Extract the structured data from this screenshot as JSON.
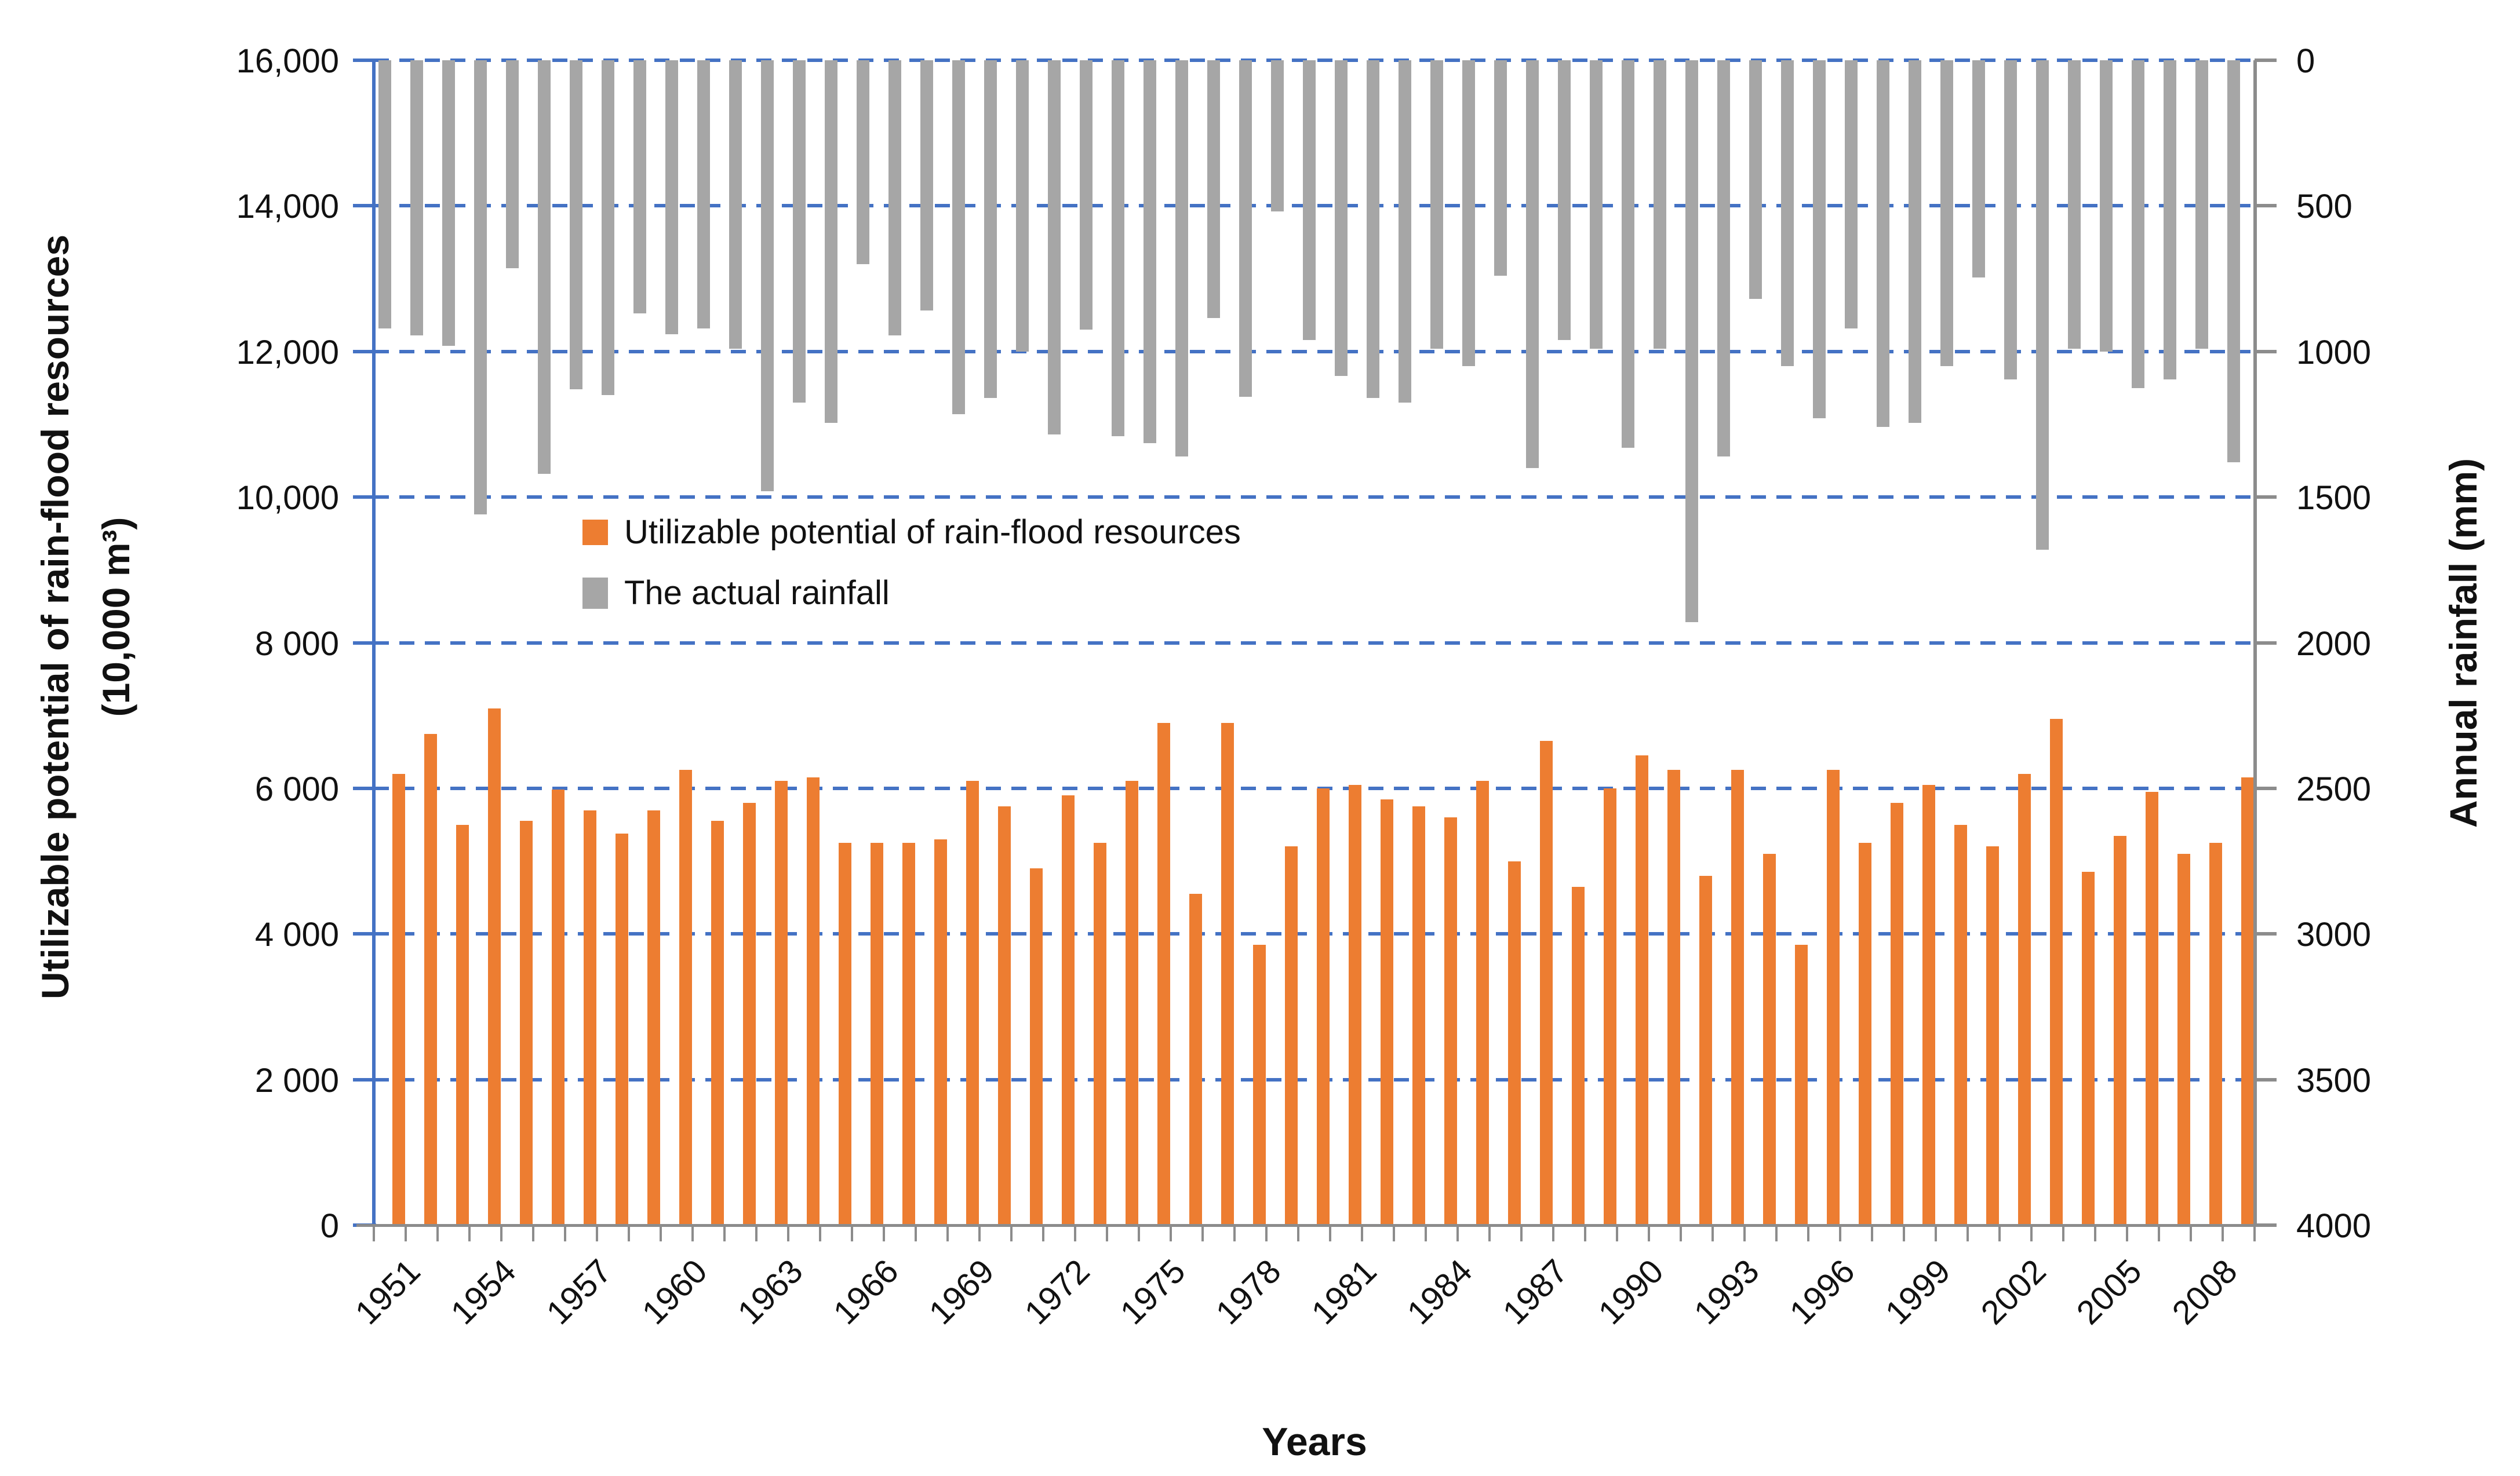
{
  "chart": {
    "left_axis": {
      "title_line1": "Utilizable potential of rain-flood resources",
      "title_line2": "(10,000 m³)",
      "tick_labels": [
        "16,000",
        "14,000",
        "12,000",
        "10,000",
        "8 000",
        "6 000",
        "4 000",
        "2 000",
        "0"
      ]
    },
    "right_axis": {
      "title": "Annual rainfall  (mm)",
      "tick_labels": [
        "0",
        "500",
        "1000",
        "1500",
        "2000",
        "2500",
        "3000",
        "3500",
        "4000"
      ]
    },
    "x_title": "Years",
    "legend": [
      {
        "label": "Utilizable potential of rain-flood resources",
        "color": "#ED7D31"
      },
      {
        "label": "The actual rainfall",
        "color": "#A6A6A6"
      }
    ],
    "colors": {
      "orange": "#ED7D31",
      "gray": "#A6A6A6",
      "axis_blue": "#4472C4",
      "axis_gray": "#8C8C8C",
      "text": "#111111"
    }
  },
  "chart_data": {
    "type": "bar",
    "title": "",
    "xlabel": "Years",
    "ylabel_left": "Utilizable potential of rain-flood resources (10,000 m³)",
    "ylabel_right": "Annual rainfall (mm)",
    "left_axis_range": [
      0,
      16000
    ],
    "right_axis_range": [
      0,
      4000
    ],
    "right_axis_inverted": true,
    "grid": "dashed horizontal every 2000 (left) / 500 (right)",
    "legend_position": "inside plot, upper-left-center",
    "x_label_every": 3,
    "x": [
      1951,
      1952,
      1953,
      1954,
      1955,
      1956,
      1957,
      1958,
      1959,
      1960,
      1961,
      1962,
      1963,
      1964,
      1965,
      1966,
      1967,
      1968,
      1969,
      1970,
      1971,
      1972,
      1973,
      1974,
      1975,
      1976,
      1977,
      1978,
      1979,
      1980,
      1981,
      1982,
      1983,
      1984,
      1985,
      1986,
      1987,
      1988,
      1989,
      1990,
      1991,
      1992,
      1993,
      1994,
      1995,
      1996,
      1997,
      1998,
      1999,
      2000,
      2001,
      2002,
      2003,
      2004,
      2005,
      2006,
      2007,
      2008,
      2009
    ],
    "series": [
      {
        "name": "Utilizable potential of rain-flood resources",
        "axis": "left",
        "units": "10,000 m³",
        "color": "#ED7D31",
        "values": [
          6200,
          6750,
          5500,
          7100,
          5550,
          5980,
          5700,
          5380,
          5700,
          6250,
          5550,
          5800,
          6100,
          6150,
          5250,
          5250,
          5250,
          5300,
          6100,
          5750,
          4900,
          5900,
          5250,
          6100,
          6900,
          4550,
          6900,
          3850,
          5200,
          6000,
          6050,
          5850,
          5750,
          5600,
          6100,
          5000,
          6650,
          4650,
          6000,
          6450,
          6250,
          4800,
          6250,
          5100,
          3850,
          6250,
          5250,
          5800,
          6050,
          5500,
          5200,
          6200,
          6950,
          4850,
          5350,
          5950,
          5100,
          5250,
          6150
        ]
      },
      {
        "name": "The actual rainfall",
        "axis": "right",
        "units": "mm",
        "color": "#A6A6A6",
        "values": [
          920,
          945,
          980,
          1560,
          715,
          1420,
          1130,
          1150,
          870,
          940,
          920,
          990,
          1480,
          1175,
          1245,
          700,
          945,
          860,
          1215,
          1160,
          1000,
          1285,
          925,
          1290,
          1315,
          1360,
          885,
          1155,
          520,
          960,
          1085,
          1160,
          1175,
          990,
          1050,
          740,
          1400,
          960,
          990,
          1330,
          990,
          1930,
          1360,
          820,
          1050,
          1230,
          920,
          1260,
          1245,
          1050,
          745,
          1095,
          1680,
          990,
          1000,
          1125,
          1095,
          990,
          1380
        ]
      }
    ]
  }
}
